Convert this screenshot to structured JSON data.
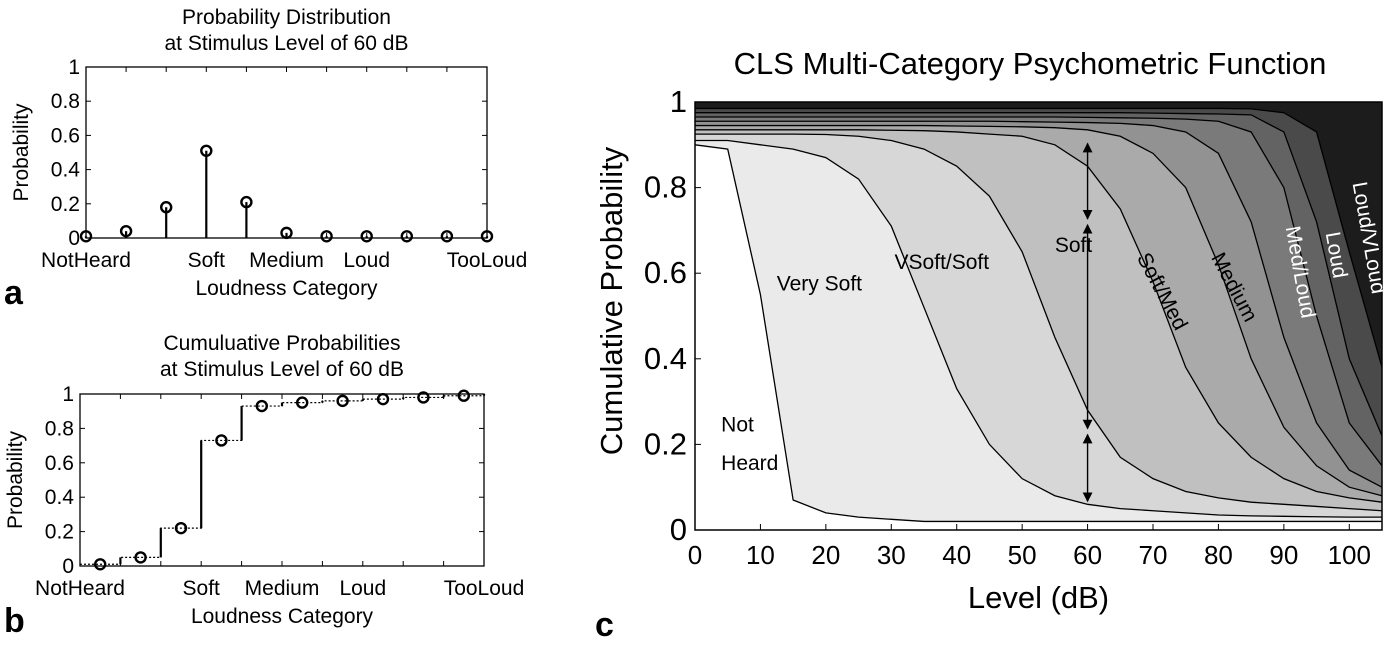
{
  "chart_data": [
    {
      "id": "a",
      "type": "stem",
      "panel_label": "a",
      "title": [
        "Probability Distribution",
        "at Stimulus Level of 60 dB"
      ],
      "xlabel": "Loudness Category",
      "ylabel": "Probability",
      "categories": [
        "NotHeard",
        "",
        "",
        "Soft",
        "",
        "Medium",
        "",
        "Loud",
        "",
        "",
        "TooLoud"
      ],
      "values": [
        0.01,
        0.04,
        0.18,
        0.51,
        0.21,
        0.03,
        0.01,
        0.01,
        0.01,
        0.01,
        0.01
      ],
      "ylim": [
        0,
        1
      ],
      "yticks": [
        "0",
        "0.2",
        "0.4",
        "0.6",
        "0.8",
        "1"
      ]
    },
    {
      "id": "b",
      "type": "stairs",
      "panel_label": "b",
      "title": [
        "Cumuluative Probabilities",
        "at Stimulus Level of 60 dB"
      ],
      "xlabel": "Loudness Category",
      "ylabel": "Probability",
      "categories": [
        "NotHeard",
        "",
        "",
        "Soft",
        "",
        "Medium",
        "",
        "Loud",
        "",
        "",
        "TooLoud"
      ],
      "values": [
        0.01,
        0.05,
        0.22,
        0.73,
        0.93,
        0.95,
        0.96,
        0.97,
        0.98,
        0.99,
        1.0
      ],
      "ylim": [
        0,
        1
      ],
      "yticks": [
        "0",
        "0.2",
        "0.4",
        "0.6",
        "0.8",
        "1"
      ]
    },
    {
      "id": "c",
      "type": "area",
      "panel_label": "c",
      "title": "CLS Multi-Category Psychometric Function",
      "xlabel": "Level (dB)",
      "ylabel": "Cumulative Probability",
      "xlim": [
        0,
        105
      ],
      "ylim": [
        0,
        1
      ],
      "xticks": [
        "0",
        "10",
        "20",
        "30",
        "40",
        "50",
        "60",
        "70",
        "80",
        "90",
        "100"
      ],
      "yticks": [
        "0",
        "0.2",
        "0.4",
        "0.6",
        "0.8",
        "1"
      ],
      "x": [
        0,
        5,
        10,
        15,
        20,
        25,
        30,
        35,
        40,
        45,
        50,
        55,
        60,
        65,
        70,
        75,
        80,
        85,
        90,
        95,
        100,
        105
      ],
      "series": [
        {
          "name": "Not Heard",
          "values": [
            0.9,
            0.89,
            0.55,
            0.07,
            0.04,
            0.03,
            0.025,
            0.02,
            0.02,
            0.02,
            0.02,
            0.02,
            0.02,
            0.02,
            0.02,
            0.02,
            0.02,
            0.02,
            0.02,
            0.02,
            0.02,
            0.02
          ],
          "color": "#ffffff"
        },
        {
          "name": "Very Soft",
          "values": [
            0.91,
            0.91,
            0.9,
            0.89,
            0.87,
            0.82,
            0.71,
            0.52,
            0.33,
            0.2,
            0.12,
            0.08,
            0.06,
            0.05,
            0.045,
            0.04,
            0.035,
            0.033,
            0.032,
            0.031,
            0.03,
            0.03
          ],
          "color": "#eaeaea"
        },
        {
          "name": "VSoft/Soft",
          "values": [
            0.925,
            0.925,
            0.925,
            0.925,
            0.924,
            0.92,
            0.91,
            0.89,
            0.85,
            0.78,
            0.65,
            0.45,
            0.28,
            0.17,
            0.12,
            0.09,
            0.075,
            0.065,
            0.06,
            0.055,
            0.05,
            0.045
          ],
          "color": "#d7d7d7"
        },
        {
          "name": "Soft",
          "values": [
            0.935,
            0.935,
            0.935,
            0.935,
            0.935,
            0.935,
            0.934,
            0.933,
            0.93,
            0.925,
            0.92,
            0.9,
            0.85,
            0.75,
            0.58,
            0.38,
            0.25,
            0.17,
            0.12,
            0.09,
            0.075,
            0.065
          ],
          "color": "#c0c0c0"
        },
        {
          "name": "Soft/Med",
          "values": [
            0.945,
            0.945,
            0.945,
            0.945,
            0.945,
            0.945,
            0.945,
            0.945,
            0.944,
            0.943,
            0.942,
            0.94,
            0.935,
            0.92,
            0.88,
            0.8,
            0.62,
            0.4,
            0.24,
            0.15,
            0.1,
            0.08
          ],
          "color": "#aaaaaa"
        },
        {
          "name": "Medium",
          "values": [
            0.955,
            0.955,
            0.955,
            0.955,
            0.955,
            0.955,
            0.955,
            0.955,
            0.955,
            0.955,
            0.954,
            0.953,
            0.952,
            0.95,
            0.945,
            0.93,
            0.88,
            0.72,
            0.45,
            0.25,
            0.14,
            0.1
          ],
          "color": "#929292"
        },
        {
          "name": "Med/Loud",
          "values": [
            0.965,
            0.965,
            0.965,
            0.965,
            0.965,
            0.965,
            0.965,
            0.965,
            0.965,
            0.965,
            0.965,
            0.965,
            0.964,
            0.963,
            0.962,
            0.96,
            0.955,
            0.93,
            0.8,
            0.5,
            0.25,
            0.15
          ],
          "color": "#7a7a7a"
        },
        {
          "name": "Loud",
          "values": [
            0.975,
            0.975,
            0.975,
            0.975,
            0.975,
            0.975,
            0.975,
            0.975,
            0.975,
            0.975,
            0.975,
            0.975,
            0.975,
            0.975,
            0.974,
            0.973,
            0.972,
            0.97,
            0.93,
            0.72,
            0.4,
            0.22
          ],
          "color": "#636363"
        },
        {
          "name": "Loud/VLoud",
          "values": [
            0.985,
            0.985,
            0.985,
            0.985,
            0.985,
            0.985,
            0.985,
            0.985,
            0.985,
            0.985,
            0.985,
            0.985,
            0.985,
            0.985,
            0.985,
            0.985,
            0.985,
            0.984,
            0.975,
            0.93,
            0.65,
            0.38
          ],
          "color": "#4a4a4a"
        },
        {
          "name": "",
          "values": [
            1,
            1,
            1,
            1,
            1,
            1,
            1,
            1,
            1,
            1,
            1,
            1,
            1,
            1,
            1,
            1,
            1,
            1,
            1,
            1,
            1,
            1
          ],
          "color": "#1c1c1c"
        }
      ],
      "region_labels": [
        {
          "text": "Not",
          "x": 4,
          "y": 0.23
        },
        {
          "text": "Heard",
          "x": 4,
          "y": 0.14
        },
        {
          "text": "Very Soft",
          "x": 12.5,
          "y": 0.56
        },
        {
          "text": "VSoft/Soft",
          "x": 30.5,
          "y": 0.61
        },
        {
          "text": "Soft",
          "x": 55,
          "y": 0.65
        },
        {
          "text": "Soft/Med",
          "x": 70.5,
          "y": 0.55,
          "rotate": 62
        },
        {
          "text": "Medium",
          "x": 81.5,
          "y": 0.56,
          "rotate": 62
        },
        {
          "text": "Med/Loud",
          "x": 91.5,
          "y": 0.6,
          "rotate": 80,
          "light": true
        },
        {
          "text": "Loud",
          "x": 97,
          "y": 0.64,
          "rotate": 80,
          "light": true
        },
        {
          "text": "Loud/VLoud",
          "x": 102,
          "y": 0.68,
          "rotate": 80,
          "light": true
        }
      ],
      "annotations": [
        {
          "type": "double-arrow",
          "x": 60,
          "y0": 0.72,
          "y1": 0.91
        },
        {
          "type": "double-arrow",
          "x": 60,
          "y0": 0.23,
          "y1": 0.72
        },
        {
          "type": "double-arrow",
          "x": 60,
          "y0": 0.06,
          "y1": 0.23
        }
      ]
    }
  ]
}
